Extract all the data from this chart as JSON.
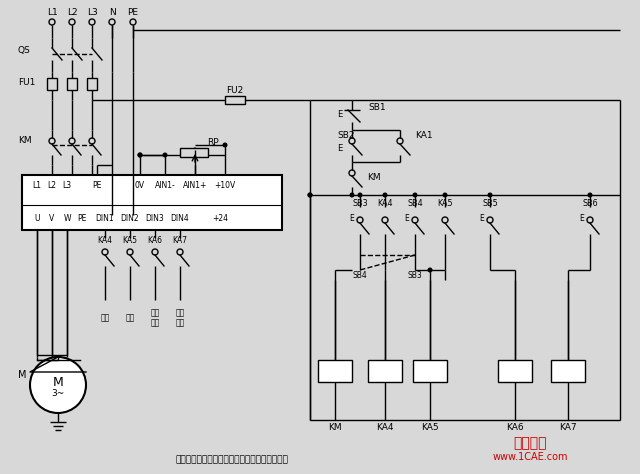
{
  "title": "使用变频器的异步电动机可逆调速系统控制线路",
  "bg_color": "#d8d8d8",
  "line_color": "#000000",
  "watermark_text": "仿真在线",
  "watermark_url": "www.1CAE.com",
  "watermark_color": "#cc0000",
  "fig_width": 6.4,
  "fig_height": 4.74,
  "dpi": 100
}
